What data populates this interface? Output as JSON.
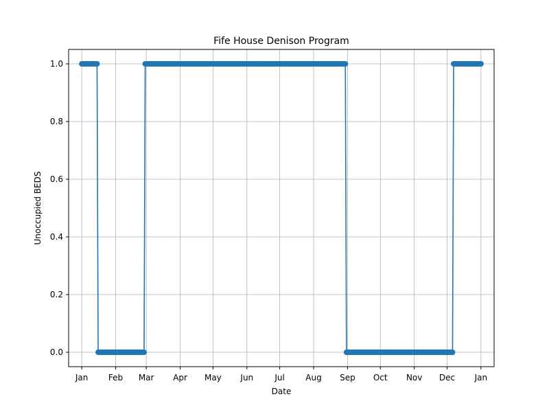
{
  "chart_data": {
    "type": "line",
    "title": "Fife House Denison Program",
    "xlabel": "Date",
    "ylabel": "Unoccupied BEDS",
    "x_tick_labels": [
      "Jan",
      "Feb",
      "Mar",
      "Apr",
      "May",
      "Jun",
      "Jul",
      "Aug",
      "Sep",
      "Oct",
      "Nov",
      "Dec",
      "Jan"
    ],
    "x_tick_dates": [
      "2021-01-01",
      "2021-02-01",
      "2021-03-01",
      "2021-04-01",
      "2021-05-01",
      "2021-06-01",
      "2021-07-01",
      "2021-08-01",
      "2021-09-01",
      "2021-10-01",
      "2021-11-01",
      "2021-12-01",
      "2022-01-01"
    ],
    "xlim": [
      "2020-12-20",
      "2022-01-13"
    ],
    "y_ticks": [
      "0.0",
      "0.2",
      "0.4",
      "0.6",
      "0.8",
      "1.0"
    ],
    "ylim": [
      -0.05,
      1.05
    ],
    "grid": true,
    "marker": "circle",
    "color": "#1f77b4",
    "series": [
      {
        "segments": [
          {
            "start": "2021-01-01",
            "end": "2021-01-15",
            "value": 1
          },
          {
            "start": "2021-01-16",
            "end": "2021-02-27",
            "value": 0
          },
          {
            "start": "2021-02-28",
            "end": "2021-08-30",
            "value": 1
          },
          {
            "start": "2021-08-31",
            "end": "2021-12-06",
            "value": 0
          },
          {
            "start": "2021-12-07",
            "end": "2022-01-01",
            "value": 1
          }
        ]
      }
    ]
  }
}
